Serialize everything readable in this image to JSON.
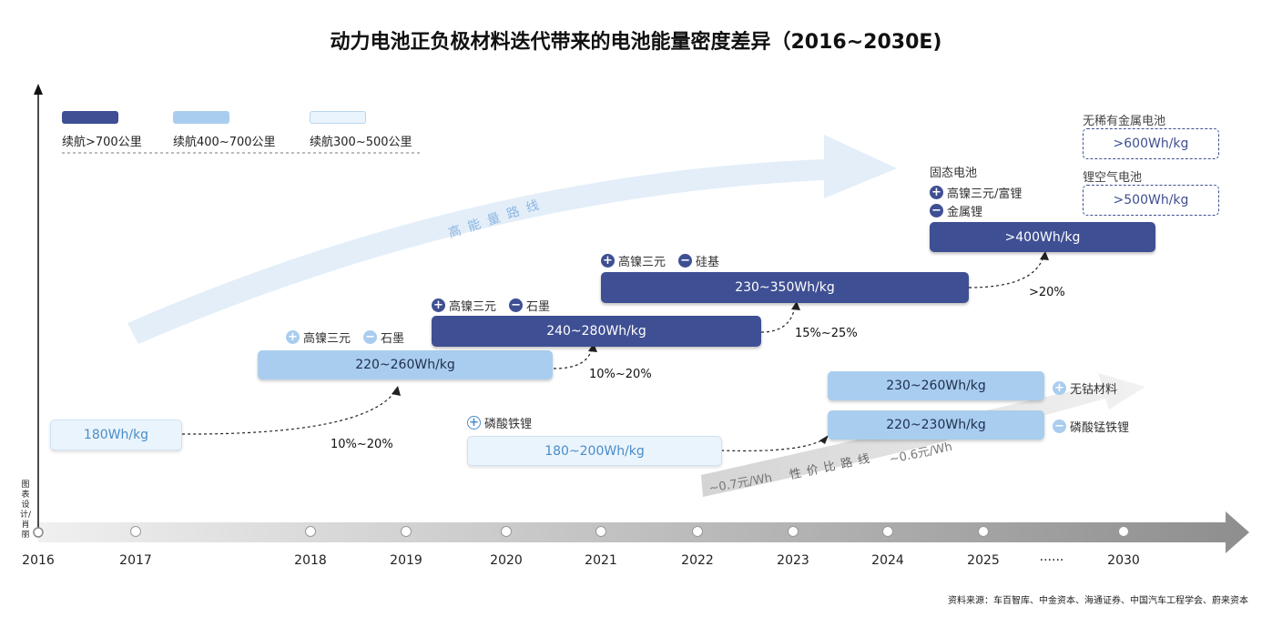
{
  "title": "动力电池正负极材料迭代带来的电池能量密度差异（2016~2030E)",
  "legend": [
    {
      "label": "续航>700公里",
      "color": "#3f4f93"
    },
    {
      "label": "续航400~700公里",
      "color": "#a9cdee"
    },
    {
      "label": "续航300~500公里",
      "color": "#eaf4fc"
    }
  ],
  "routes": {
    "high_energy": "高 能 量 路 线",
    "cost_performance": "性 价 比 路 线",
    "cost_start": "~0.7元/Wh",
    "cost_end": "~0.6元/Wh"
  },
  "bars": {
    "b2016": "180Wh/kg",
    "b2018": "220~260Wh/kg",
    "b2019": "240~280Wh/kg",
    "b2021": "230~350Wh/kg",
    "b2025": ">400Wh/kg",
    "b_lfp": "180~200Wh/kg",
    "b_nocobalt": "230~260Wh/kg",
    "b_lmfp": "220~230Wh/kg",
    "b_rare_free": ">600Wh/kg",
    "b_li_air": ">500Wh/kg"
  },
  "notes": {
    "n2018_pos": "高镍三元",
    "n2018_neg": "石墨",
    "n2019_pos": "高镍三元",
    "n2019_neg": "石墨",
    "n2021_pos": "高镍三元",
    "n2021_neg": "硅基",
    "solid_state": "固态电池",
    "solid_pos": "高镍三元/富锂",
    "solid_neg": "金属锂",
    "rare_free": "无稀有金属电池",
    "li_air": "锂空气电池",
    "lfp_pos": "磷酸铁锂",
    "nocobalt": "无钴材料",
    "lmfp": "磷酸锰铁锂",
    "icon_plus": "+",
    "icon_minus": "−"
  },
  "growth": {
    "g1": "10%~20%",
    "g2": "10%~20%",
    "g3": "15%~25%",
    "g4": ">20%"
  },
  "axis": {
    "y_label": "图表设计/肖丽",
    "years": [
      "2016",
      "2017",
      "2018",
      "2019",
      "2020",
      "2021",
      "2022",
      "2023",
      "2024",
      "2025",
      "······",
      "2030"
    ]
  },
  "source": "资料来源：车百智库、中金资本、海通证券、中国汽车工程学会、蔚来资本"
}
